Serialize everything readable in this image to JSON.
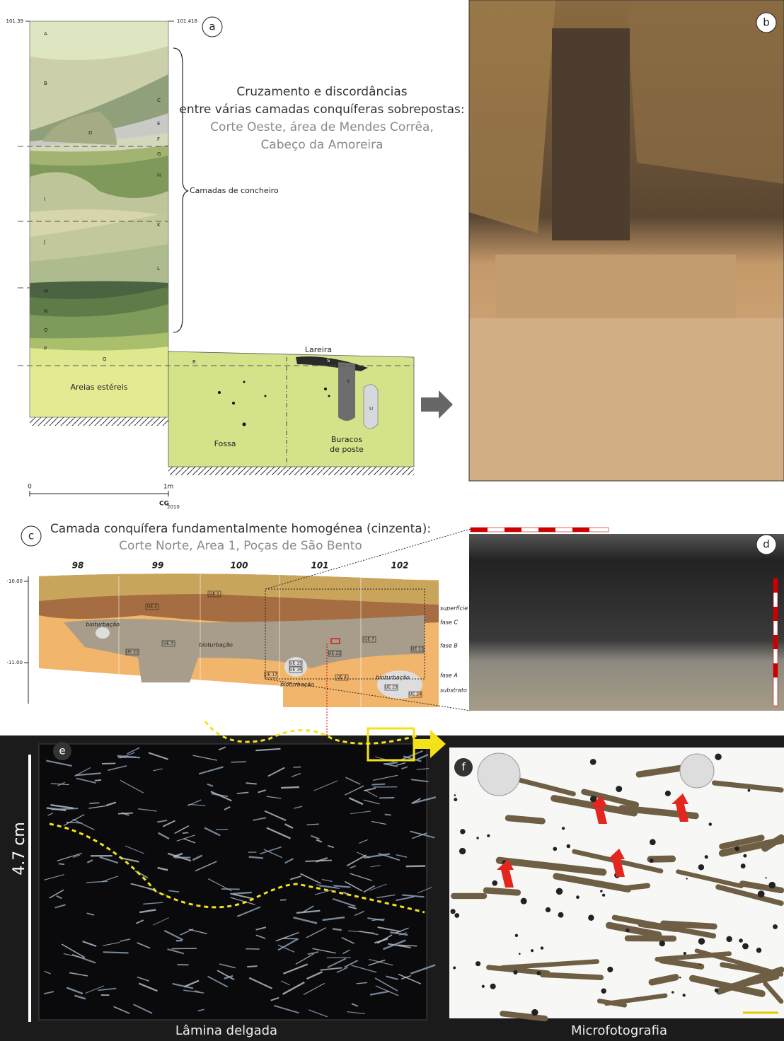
{
  "panel_a": {
    "label": "a",
    "elevation_left": "101.39",
    "elevation_right": "101.418",
    "title_lines": [
      "Cruzamento e discordâncias",
      "entre várias camadas conquíferas sobrepostas:",
      "Corte Oeste, área de Mendes Corrêa,",
      "Cabeço da Amoreira"
    ],
    "layers": [
      "A",
      "B",
      "C",
      "D",
      "E",
      "F",
      "G",
      "H",
      "I",
      "J",
      "K",
      "L",
      "M",
      "N",
      "O",
      "P",
      "Q"
    ],
    "lower_layers": [
      "R",
      "S",
      "T",
      "U"
    ],
    "bracket_label": "Camadas de concheiro",
    "hearth": "Lareira",
    "sterile_sands": "Areias estéreis",
    "pit": "Fossa",
    "postholes": [
      "Buracos",
      "de poste"
    ],
    "scale_start": "0",
    "scale_end": "1m",
    "signature": "CG",
    "signature_year": "2010"
  },
  "panel_b": {
    "label": "b"
  },
  "panel_c": {
    "label": "c",
    "title": "Camada conquífera fundamentalmente homogénea (cinzenta):",
    "subtitle": "Corte Norte, Area 1, Poças de São Bento",
    "grid_labels": [
      "98",
      "99",
      "100",
      "101",
      "102"
    ],
    "depth_labels": [
      "-10.00",
      "-11.00"
    ],
    "units": [
      "UE 1",
      "UE 2",
      "UE 3",
      "UE 21",
      "UE 22",
      "UE 7",
      "UE 11",
      "UE 15",
      "UE 16",
      "UE 17",
      "UE 4",
      "UE 23",
      "UE 24"
    ],
    "bioturbation": [
      "bioturbação",
      "bioturbação",
      "bioturbação",
      "bioturbação"
    ],
    "phases": [
      "superfície",
      "fase C",
      "fase B",
      "fase A",
      "substrato"
    ]
  },
  "panel_d": {
    "label": "d"
  },
  "panel_e": {
    "label": "e",
    "scale": "4.7 cm",
    "caption": "Lâmina delgada"
  },
  "panel_f": {
    "label": "f",
    "caption": "Microfotografia"
  }
}
